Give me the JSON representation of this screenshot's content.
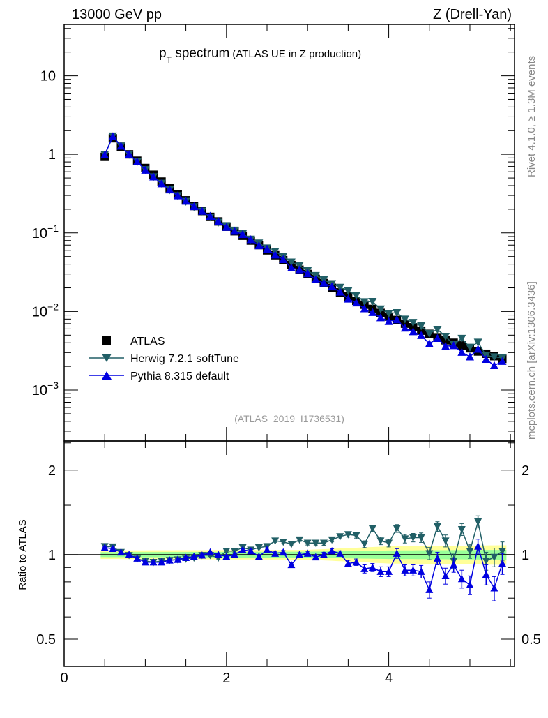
{
  "header": {
    "left": "13000 GeV pp",
    "right": "Z (Drell-Yan)"
  },
  "side_text": {
    "top": "Rivet 4.1.0, ≥ 1.3M events",
    "bottom": "mcplots.cern.ch [arXiv:1306.3436]"
  },
  "colors": {
    "atlas": "#000000",
    "herwig": "#215f66",
    "pythia": "#0000e0",
    "band_inner": "#99ff99",
    "band_outer": "#ffff99"
  },
  "chart_data": {
    "type": "scatter",
    "title_main": "p",
    "title_sub": "T",
    "title_rest": " spectrum",
    "title_paren": "(ATLAS UE in Z production)",
    "analysis_label": "(ATLAS_2019_I1736531)",
    "xlim": [
      0,
      5.55
    ],
    "ylim_main": [
      0.000225,
      45
    ],
    "ylim_ratio": [
      0.4,
      2.54
    ],
    "ylabel_ratio": "Ratio to ATLAS",
    "x_ticks": [
      "0",
      "2",
      "4"
    ],
    "y_ticks_main": [
      {
        "base": "10",
        "exp": ""
      },
      {
        "base": "1",
        "exp": ""
      },
      {
        "base": "10",
        "exp": "−1"
      },
      {
        "base": "10",
        "exp": "−2"
      },
      {
        "base": "10",
        "exp": "−3"
      }
    ],
    "y_ticks_ratio": [
      "2",
      "1",
      "0.5"
    ],
    "legend": [
      "ATLAS",
      "Herwig 7.2.1 softTune",
      "Pythia 8.315 default"
    ],
    "x": [
      0.5,
      0.6,
      0.7,
      0.8,
      0.9,
      1.0,
      1.1,
      1.2,
      1.3,
      1.4,
      1.5,
      1.6,
      1.7,
      1.8,
      1.9,
      2.0,
      2.1,
      2.2,
      2.3,
      2.4,
      2.5,
      2.6,
      2.7,
      2.8,
      2.9,
      3.0,
      3.1,
      3.2,
      3.3,
      3.4,
      3.5,
      3.6,
      3.7,
      3.8,
      3.9,
      4.0,
      4.1,
      4.2,
      4.3,
      4.4,
      4.5,
      4.6,
      4.7,
      4.8,
      4.9,
      5.0,
      5.1,
      5.2,
      5.3,
      5.4
    ],
    "atlas": [
      0.93,
      1.6,
      1.25,
      1.0,
      0.83,
      0.67,
      0.55,
      0.45,
      0.37,
      0.31,
      0.26,
      0.22,
      0.19,
      0.16,
      0.14,
      0.12,
      0.105,
      0.092,
      0.08,
      0.07,
      0.06,
      0.052,
      0.045,
      0.039,
      0.034,
      0.03,
      0.026,
      0.023,
      0.02,
      0.0175,
      0.0155,
      0.0137,
      0.0122,
      0.0108,
      0.0096,
      0.0086,
      0.0078,
      0.007,
      0.0063,
      0.0057,
      0.0052,
      0.0047,
      0.0043,
      0.004,
      0.0037,
      0.0034,
      0.0031,
      0.0029,
      0.0027,
      0.0025
    ],
    "herwig_ratio": [
      1.07,
      1.067,
      1.02,
      0.995,
      0.966,
      0.95,
      0.94,
      0.95,
      0.955,
      0.96,
      0.966,
      0.975,
      0.995,
      0.995,
      0.975,
      1.03,
      1.03,
      1.06,
      1.04,
      1.06,
      1.07,
      1.12,
      1.11,
      1.09,
      1.13,
      1.1,
      1.1,
      1.1,
      1.13,
      1.16,
      1.18,
      1.17,
      1.09,
      1.24,
      1.12,
      1.1,
      1.24,
      1.14,
      1.15,
      1.15,
      1.01,
      1.26,
      1.12,
      0.95,
      1.23,
      1.03,
      1.31,
      0.95,
      0.98,
      1.03
    ],
    "pythia_ratio": [
      1.06,
      1.05,
      1.02,
      1.0,
      0.97,
      0.94,
      0.94,
      0.94,
      0.955,
      0.96,
      0.975,
      0.985,
      0.995,
      1.02,
      1.0,
      0.985,
      1.0,
      1.04,
      1.03,
      0.985,
      1.04,
      1.01,
      1.02,
      0.92,
      1.0,
      1.01,
      0.98,
      1.0,
      1.03,
      1.01,
      0.93,
      0.94,
      0.89,
      0.9,
      0.87,
      0.87,
      1.01,
      0.88,
      0.88,
      0.87,
      0.75,
      0.97,
      0.84,
      0.92,
      0.82,
      0.78,
      1.07,
      0.85,
      0.76,
      0.93
    ],
    "ratio_err": [
      0.01,
      0.01,
      0.01,
      0.01,
      0.01,
      0.01,
      0.01,
      0.01,
      0.01,
      0.01,
      0.01,
      0.01,
      0.01,
      0.01,
      0.01,
      0.012,
      0.012,
      0.012,
      0.012,
      0.012,
      0.014,
      0.014,
      0.015,
      0.015,
      0.016,
      0.018,
      0.018,
      0.02,
      0.02,
      0.022,
      0.025,
      0.025,
      0.03,
      0.03,
      0.035,
      0.035,
      0.04,
      0.04,
      0.04,
      0.045,
      0.05,
      0.05,
      0.055,
      0.055,
      0.06,
      0.06,
      0.065,
      0.07,
      0.075,
      0.08
    ],
    "band_x": [
      0.45,
      3.0,
      4.0,
      5.45
    ],
    "band_inner": [
      0.02,
      0.025,
      0.035,
      0.04
    ],
    "band_outer": [
      0.035,
      0.04,
      0.07,
      0.08
    ],
    "grid": false,
    "legend_position": "bottom-left"
  }
}
